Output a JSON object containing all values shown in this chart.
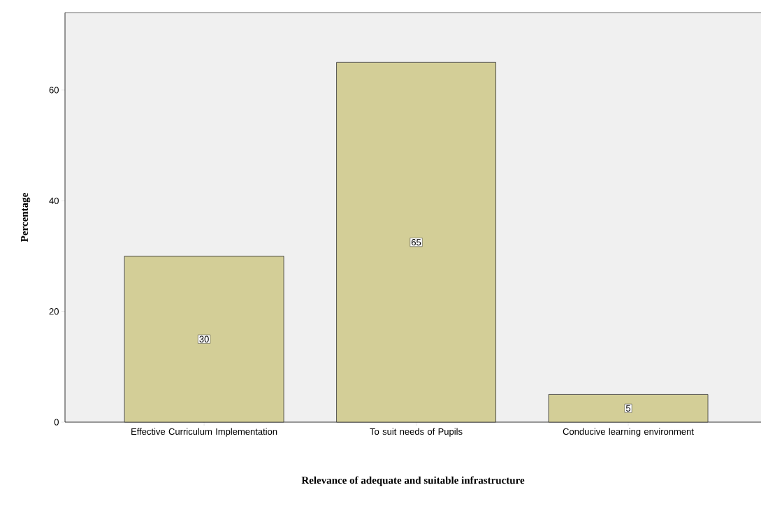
{
  "chart_data": {
    "type": "bar",
    "xlabel": "Relevance of adequate and suitable infrastructure",
    "ylabel": "Percentage",
    "categories": [
      "Effective Curriculum Implementation",
      "To suit needs of Pupils",
      "Conducive learning environment"
    ],
    "values": [
      30,
      65,
      5
    ],
    "color": "#d3ce97",
    "ylim": [
      0,
      74
    ],
    "yticks": [
      0,
      20,
      40,
      60
    ],
    "data_labels": true
  }
}
